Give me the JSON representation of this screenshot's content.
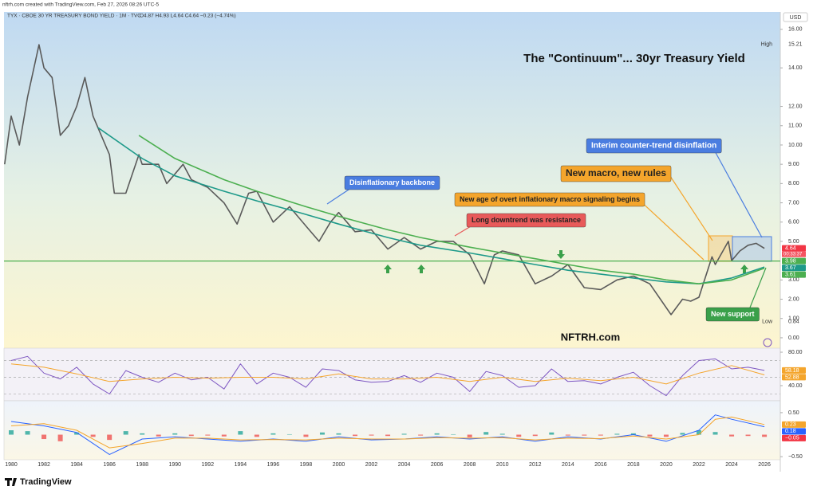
{
  "header": {
    "created": "nftrh.com created with TradingView.com, Feb 27, 2026 08:26 UTC-5",
    "symbol": "TYX · CBOE 30 YR TREASURY BOND YIELD · 1M · TVC",
    "ohlc": "O4.87 H4.93 L4.64 C4.64 −0.23 (−4.74%)",
    "currency": "USD"
  },
  "footer": {
    "brand": "TradingView"
  },
  "chart_data": [
    {
      "type": "line",
      "title": "The \"Continuum\"... 30yr Treasury Yield",
      "watermark": "NFTRH.com",
      "annotations": [
        "Disinflationary backbone",
        "New age of overt inflationary macro signaling begins",
        "Long downtrend was resistance",
        "New macro, new rules",
        "Interim counter-trend disinflation",
        "New support"
      ],
      "xlim": [
        1979.56,
        2026.97
      ],
      "xticks": [
        1980,
        1982,
        1984,
        1986,
        1988,
        1990,
        1992,
        1994,
        1996,
        1998,
        2000,
        2002,
        2004,
        2006,
        2008,
        2010,
        2012,
        2014,
        2016,
        2018,
        2020,
        2022,
        2024,
        2026
      ],
      "ylim": [
        -0.54,
        16.9
      ],
      "yticks": [
        {
          "value": 0,
          "label": "0.00"
        },
        {
          "value": 1,
          "label": "1.00"
        },
        {
          "value": 2,
          "label": "2.00"
        },
        {
          "value": 3,
          "label": "3.00"
        },
        {
          "value": 5,
          "label": "5.00"
        },
        {
          "value": 6,
          "label": "6.00"
        },
        {
          "value": 7,
          "label": "7.00"
        },
        {
          "value": 8,
          "label": "8.00"
        },
        {
          "value": 9,
          "label": "9.00"
        },
        {
          "value": 10,
          "label": "10.00"
        },
        {
          "value": 11,
          "label": "11.00"
        },
        {
          "value": 12,
          "label": "12.00"
        },
        {
          "value": 14,
          "label": "14.00"
        },
        {
          "value": 16,
          "label": "16.00"
        }
      ],
      "extremes": [
        {
          "label": "High",
          "value": 15.21
        },
        {
          "label": "Low",
          "value": 0.84
        }
      ],
      "price_tags": [
        {
          "value": 4.64,
          "color": "#f23645"
        },
        {
          "value": 3.98,
          "color": "#4caf50",
          "line": true
        },
        {
          "value": 3.67,
          "color": "#1e9a8a"
        },
        {
          "value": 3.61,
          "color": "#4caf50"
        }
      ],
      "countdown": "00:33:37",
      "series": [
        {
          "color": "#5a5a5a",
          "x": [
            1979.6,
            1980,
            1980.5,
            1981,
            1981.7,
            1982,
            1982.5,
            1983,
            1983.5,
            1984,
            1984.5,
            1985,
            1985.5,
            1986,
            1986.3,
            1987,
            1987.8,
            1988,
            1989,
            1989.5,
            1990,
            1990.5,
            1991,
            1992,
            1993,
            1993.8,
            1994.5,
            1995,
            1996,
            1997,
            1998,
            1998.8,
            1999.5,
            2000,
            2001,
            2002,
            2003,
            2004,
            2005,
            2006,
            2007,
            2008,
            2008.9,
            2009.5,
            2010,
            2011,
            2012,
            2013,
            2014,
            2015,
            2016,
            2017,
            2018,
            2019,
            2020.3,
            2021,
            2021.5,
            2022,
            2022.8,
            2023,
            2023.8,
            2024,
            2024.5,
            2025,
            2025.5,
            2026
          ],
          "values": [
            9.0,
            11.5,
            10.0,
            12.5,
            15.2,
            14.0,
            13.5,
            10.5,
            11.0,
            12.0,
            13.5,
            11.5,
            10.5,
            9.5,
            7.5,
            7.5,
            9.5,
            9.0,
            9.0,
            8.0,
            8.5,
            9.0,
            8.2,
            7.8,
            7.0,
            5.9,
            7.5,
            7.6,
            6.0,
            6.8,
            5.8,
            5.0,
            6.0,
            6.5,
            5.5,
            5.6,
            4.6,
            5.2,
            4.6,
            5.0,
            5.0,
            4.3,
            2.8,
            4.3,
            4.5,
            4.3,
            2.8,
            3.2,
            3.8,
            2.6,
            2.5,
            3.0,
            3.2,
            2.8,
            1.2,
            2.0,
            1.9,
            2.1,
            4.2,
            3.8,
            5.0,
            4.0,
            4.5,
            4.8,
            4.9,
            4.64
          ]
        },
        {
          "color": "#1e9a8a",
          "x": [
            1985.3,
            1988,
            1990,
            1993,
            1995,
            1998,
            2000,
            2003,
            2005,
            2008,
            2010,
            2012,
            2014,
            2016,
            2018,
            2020,
            2022,
            2024,
            2026
          ],
          "values": [
            10.9,
            9.3,
            8.4,
            7.6,
            7.1,
            6.4,
            5.9,
            5.2,
            4.8,
            4.4,
            4.1,
            3.8,
            3.5,
            3.3,
            3.1,
            2.9,
            2.8,
            3.1,
            3.67
          ]
        },
        {
          "color": "#4caf50",
          "x": [
            1987.8,
            1990,
            1993,
            1995,
            1998,
            2000,
            2003,
            2005,
            2008,
            2010,
            2012,
            2014,
            2016,
            2018,
            2020,
            2022,
            2024,
            2026
          ],
          "values": [
            10.5,
            9.3,
            8.2,
            7.6,
            6.8,
            6.3,
            5.6,
            5.2,
            4.7,
            4.4,
            4.1,
            3.8,
            3.5,
            3.3,
            3.0,
            2.8,
            3.0,
            3.61
          ]
        }
      ]
    },
    {
      "type": "line",
      "ylim": [
        21.9,
        84.8
      ],
      "yticks": [
        {
          "value": 80,
          "label": "80.00"
        },
        {
          "value": 40,
          "label": "40.00"
        }
      ],
      "bands": [
        70,
        50,
        30
      ],
      "price_tags": [
        {
          "value": 58.18,
          "color": "#f4a52c"
        },
        {
          "value": 52.88,
          "color": "#f4a52c"
        }
      ],
      "series": [
        {
          "color": "#7e57c2",
          "x": [
            1980,
            1981,
            1982,
            1983,
            1984,
            1985,
            1986,
            1987,
            1988,
            1989,
            1990,
            1991,
            1992,
            1993,
            1994,
            1995,
            1996,
            1997,
            1998,
            1999,
            2000,
            2001,
            2002,
            2003,
            2004,
            2005,
            2006,
            2007,
            2008,
            2009,
            2010,
            2011,
            2012,
            2013,
            2014,
            2015,
            2016,
            2017,
            2018,
            2019,
            2020,
            2021,
            2022,
            2023,
            2024,
            2025,
            2026
          ],
          "values": [
            70,
            75,
            55,
            48,
            62,
            42,
            30,
            58,
            50,
            44,
            55,
            47,
            50,
            36,
            66,
            42,
            55,
            50,
            38,
            60,
            58,
            47,
            44,
            45,
            52,
            44,
            55,
            50,
            33,
            57,
            52,
            38,
            40,
            60,
            45,
            46,
            42,
            50,
            56,
            40,
            28,
            52,
            70,
            72,
            60,
            62,
            58.18
          ]
        },
        {
          "color": "#f4a52c",
          "x": [
            1980,
            1982,
            1984,
            1986,
            1988,
            1990,
            1992,
            1994,
            1996,
            1998,
            2000,
            2002,
            2004,
            2006,
            2008,
            2010,
            2012,
            2014,
            2016,
            2018,
            2020,
            2022,
            2024,
            2026
          ],
          "values": [
            66,
            62,
            54,
            45,
            48,
            50,
            49,
            50,
            50,
            48,
            54,
            48,
            48,
            50,
            45,
            50,
            45,
            49,
            46,
            50,
            42,
            55,
            64,
            52.88
          ]
        }
      ]
    },
    {
      "type": "line",
      "ylim": [
        -0.57,
        0.77
      ],
      "yticks": [
        {
          "value": 0.5,
          "label": "0.50"
        },
        {
          "value": -0.5,
          "label": "−0.50"
        }
      ],
      "price_tags": [
        {
          "value": 0.23,
          "color": "#f4a52c"
        },
        {
          "value": 0.18,
          "color": "#2962ff"
        },
        {
          "value": -0.05,
          "color": "#f23645",
          "label": "−0.05"
        }
      ],
      "series": [
        {
          "color": "#2962ff",
          "x": [
            1980,
            1982,
            1984,
            1986,
            1988,
            1990,
            1992,
            1994,
            1996,
            1998,
            2000,
            2002,
            2004,
            2006,
            2008,
            2010,
            2012,
            2014,
            2016,
            2018,
            2020,
            2022,
            2023,
            2024,
            2026
          ],
          "values": [
            0.3,
            0.2,
            0.05,
            -0.45,
            -0.1,
            -0.05,
            -0.1,
            -0.15,
            -0.1,
            -0.15,
            -0.05,
            -0.12,
            -0.1,
            -0.05,
            -0.1,
            -0.05,
            -0.15,
            -0.05,
            -0.1,
            0.0,
            -0.15,
            0.1,
            0.45,
            0.35,
            0.18
          ]
        },
        {
          "color": "#f4a52c",
          "x": [
            1980,
            1982,
            1984,
            1986,
            1988,
            1990,
            1992,
            1994,
            1996,
            1998,
            2000,
            2002,
            2004,
            2006,
            2008,
            2010,
            2012,
            2014,
            2016,
            2018,
            2020,
            2022,
            2023,
            2024,
            2026
          ],
          "values": [
            0.2,
            0.25,
            0.1,
            -0.3,
            -0.2,
            -0.08,
            -0.08,
            -0.12,
            -0.11,
            -0.12,
            -0.08,
            -0.1,
            -0.1,
            -0.07,
            -0.08,
            -0.07,
            -0.12,
            -0.08,
            -0.09,
            -0.03,
            -0.1,
            0.0,
            0.35,
            0.4,
            0.23
          ]
        }
      ],
      "histogram": {
        "pos_color": "#26a69a",
        "neg_color": "#ef5350",
        "x": [
          1980,
          1981,
          1982,
          1983,
          1984,
          1985,
          1986,
          1987,
          1988,
          1989,
          1990,
          1991,
          1992,
          1993,
          1994,
          1995,
          1996,
          1997,
          1998,
          1999,
          2000,
          2001,
          2002,
          2003,
          2004,
          2005,
          2006,
          2007,
          2008,
          2009,
          2010,
          2011,
          2012,
          2013,
          2014,
          2015,
          2016,
          2017,
          2018,
          2019,
          2020,
          2021,
          2022,
          2023,
          2024,
          2025,
          2026
        ],
        "values": [
          0.1,
          0.08,
          -0.1,
          -0.15,
          0.05,
          -0.05,
          -0.12,
          0.08,
          0.03,
          -0.04,
          0.03,
          -0.03,
          -0.02,
          -0.04,
          0.08,
          -0.05,
          0.03,
          0.01,
          -0.05,
          0.05,
          0.03,
          -0.03,
          -0.02,
          -0.03,
          0.02,
          -0.02,
          0.03,
          0.01,
          -0.06,
          0.06,
          0.02,
          -0.05,
          -0.03,
          0.05,
          -0.02,
          -0.02,
          -0.02,
          0.02,
          0.03,
          -0.04,
          -0.05,
          0.04,
          0.1,
          0.06,
          -0.04,
          -0.03,
          -0.05
        ]
      }
    }
  ]
}
